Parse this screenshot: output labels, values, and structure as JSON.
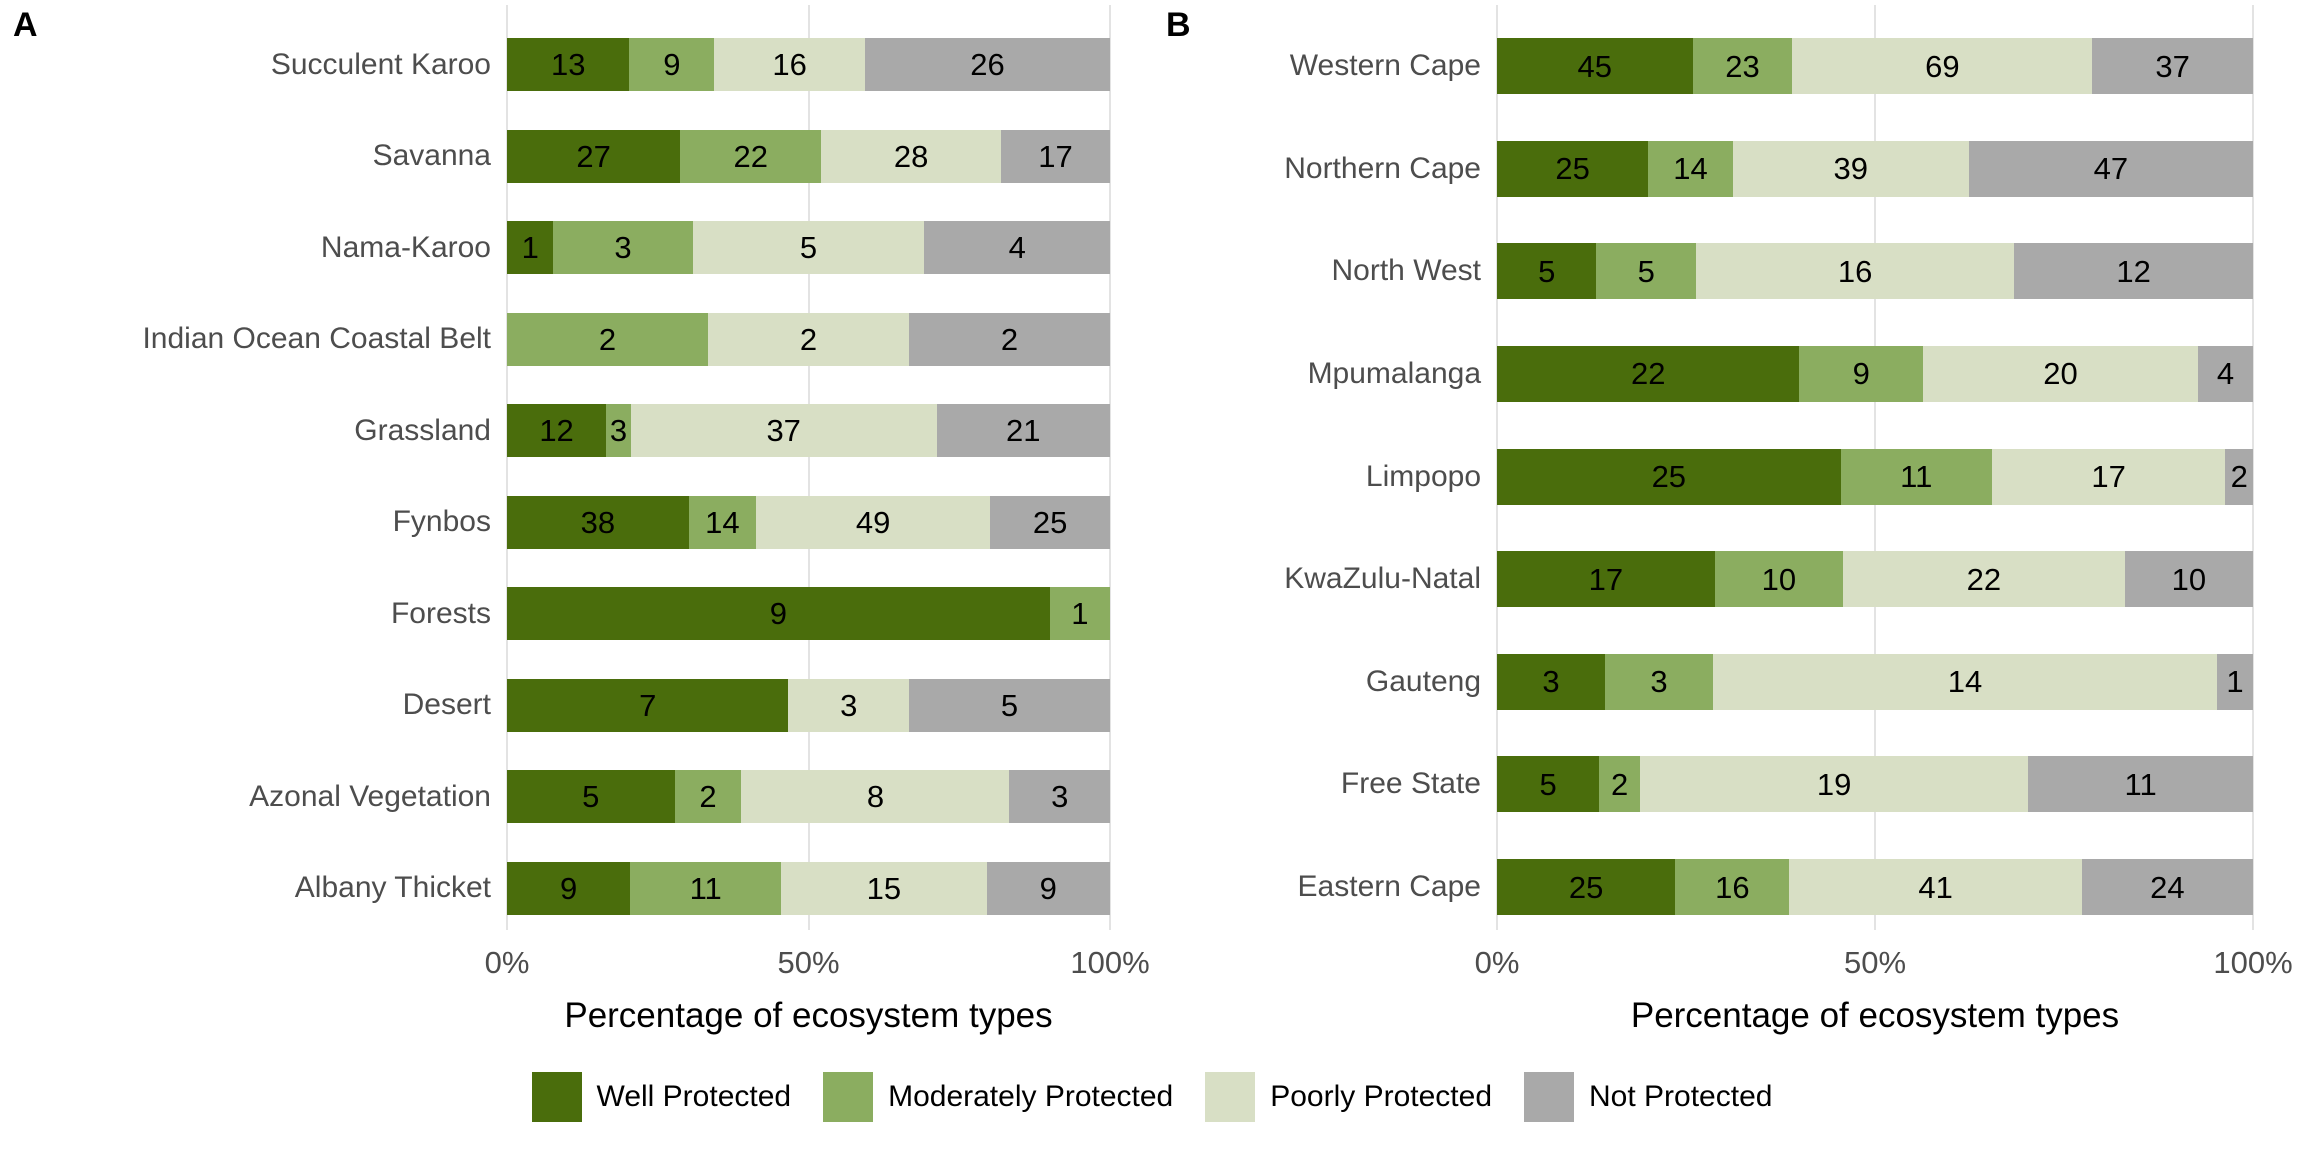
{
  "figure": {
    "background": "#ffffff",
    "panel_letters": [
      "A",
      "B"
    ]
  },
  "colors": {
    "well_protected": "#4a6d0c",
    "moderately_protected": "#8bad60",
    "poorly_protected": "#d8dfc5",
    "not_protected": "#a9a9a9",
    "gridline": "#e3e3e3",
    "axis_text": "#4d4d4d",
    "value_label": "#000000"
  },
  "legend": {
    "position": "bottom-center",
    "items": [
      {
        "label": "Well Protected",
        "color": "#4a6d0c"
      },
      {
        "label": "Moderately Protected",
        "color": "#8bad60"
      },
      {
        "label": "Poorly Protected",
        "color": "#d8dfc5"
      },
      {
        "label": "Not Protected",
        "color": "#a9a9a9"
      }
    ]
  },
  "chart_data": [
    {
      "panel_label": "A",
      "type": "bar",
      "stacked": true,
      "orientation": "horizontal",
      "normalized_to_100_percent": true,
      "categories": [
        "Succulent Karoo",
        "Savanna",
        "Nama-Karoo",
        "Indian Ocean Coastal Belt",
        "Grassland",
        "Fynbos",
        "Forests",
        "Desert",
        "Azonal Vegetation",
        "Albany Thicket"
      ],
      "series": [
        {
          "name": "Well Protected",
          "values": [
            13,
            27,
            1,
            0,
            12,
            38,
            9,
            7,
            5,
            9
          ]
        },
        {
          "name": "Moderately Protected",
          "values": [
            9,
            22,
            3,
            2,
            3,
            14,
            1,
            0,
            2,
            11
          ]
        },
        {
          "name": "Poorly Protected",
          "values": [
            16,
            28,
            5,
            2,
            37,
            49,
            0,
            3,
            8,
            15
          ]
        },
        {
          "name": "Not Protected",
          "values": [
            26,
            17,
            4,
            2,
            21,
            25,
            0,
            5,
            3,
            9
          ]
        }
      ],
      "xlabel": "Percentage of ecosystem types",
      "xlim": [
        0,
        100
      ],
      "xticks": [
        {
          "label": "0%",
          "pct": 0
        },
        {
          "label": "50%",
          "pct": 50
        },
        {
          "label": "100%",
          "pct": 100
        }
      ],
      "grid": "vertical-only",
      "value_labels_shown_inside_segments": true
    },
    {
      "panel_label": "B",
      "type": "bar",
      "stacked": true,
      "orientation": "horizontal",
      "normalized_to_100_percent": true,
      "categories": [
        "Western Cape",
        "Northern Cape",
        "North West",
        "Mpumalanga",
        "Limpopo",
        "KwaZulu-Natal",
        "Gauteng",
        "Free State",
        "Eastern Cape"
      ],
      "series": [
        {
          "name": "Well Protected",
          "values": [
            45,
            25,
            5,
            22,
            25,
            17,
            3,
            5,
            25
          ]
        },
        {
          "name": "Moderately Protected",
          "values": [
            23,
            14,
            5,
            9,
            11,
            10,
            3,
            2,
            16
          ]
        },
        {
          "name": "Poorly Protected",
          "values": [
            69,
            39,
            16,
            20,
            17,
            22,
            14,
            19,
            41
          ]
        },
        {
          "name": "Not Protected",
          "values": [
            37,
            47,
            12,
            4,
            2,
            10,
            1,
            11,
            24
          ]
        }
      ],
      "xlabel": "Percentage of ecosystem types",
      "xlim": [
        0,
        100
      ],
      "xticks": [
        {
          "label": "0%",
          "pct": 0
        },
        {
          "label": "50%",
          "pct": 50
        },
        {
          "label": "100%",
          "pct": 100
        }
      ],
      "grid": "vertical-only",
      "value_labels_shown_inside_segments": true
    }
  ]
}
